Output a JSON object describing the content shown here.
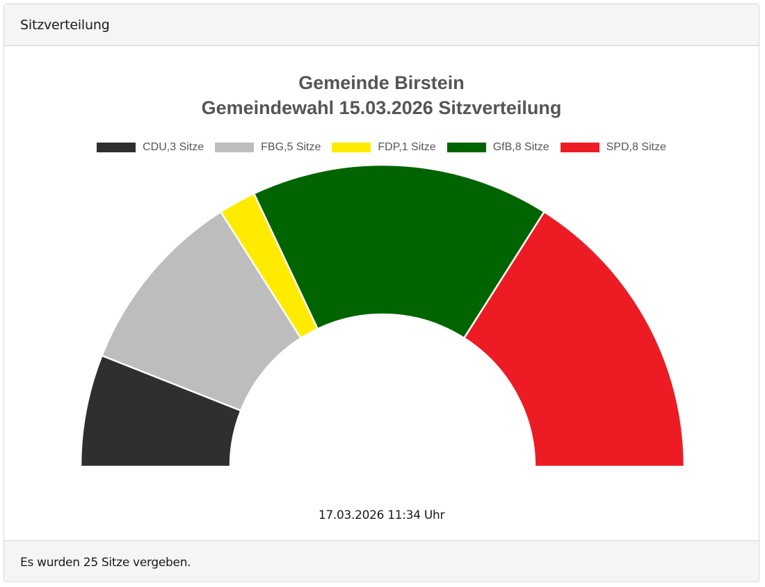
{
  "card": {
    "header_title": "Sitzverteilung",
    "footer_text": "Es wurden 25 Sitze vergeben."
  },
  "chart_data": {
    "type": "pie",
    "variant": "semicircle-donut (parliament seat distribution)",
    "title": "Gemeinde Birstein",
    "subtitle": "Gemeindewahl 15.03.2026 Sitzverteilung",
    "legend_position": "top",
    "total_seats": 25,
    "categories": [
      "CDU",
      "FBG",
      "FDP",
      "GfB",
      "SPD"
    ],
    "values": [
      3,
      5,
      1,
      8,
      8
    ],
    "colors": [
      "#302e2f",
      "#bdbdbd",
      "#ffeb00",
      "#006400",
      "#ed1c24"
    ],
    "legend": [
      {
        "label": "CDU,3 Sitze",
        "color": "#302e2f"
      },
      {
        "label": "FBG,5 Sitze",
        "color": "#bdbdbd"
      },
      {
        "label": "FDP,1 Sitze",
        "color": "#ffeb00"
      },
      {
        "label": "GfB,8 Sitze",
        "color": "#006400"
      },
      {
        "label": "SPD,8 Sitze",
        "color": "#ed1c24"
      }
    ],
    "timestamp": "17.03.2026 11:34 Uhr"
  }
}
